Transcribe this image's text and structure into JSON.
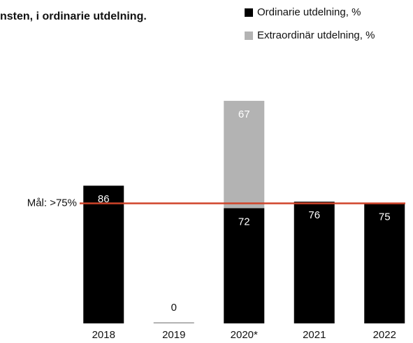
{
  "chart_data": {
    "type": "stacked_bar",
    "title": "nsten, i ordinarie utdelning.",
    "categories": [
      "2018",
      "2019",
      "2020*",
      "2021",
      "2022"
    ],
    "series": [
      {
        "name": "Ordinarie utdelning, %",
        "color": "#000000",
        "values": [
          86,
          0,
          72,
          76,
          75
        ]
      },
      {
        "name": "Extraordinär utdelning, %",
        "color": "#b3b3b3",
        "values": [
          null,
          null,
          67,
          null,
          null
        ]
      }
    ],
    "target": {
      "value": 75,
      "label": "Mål: >75%",
      "color": "#d0442a"
    },
    "ylim": [
      0,
      160
    ]
  }
}
